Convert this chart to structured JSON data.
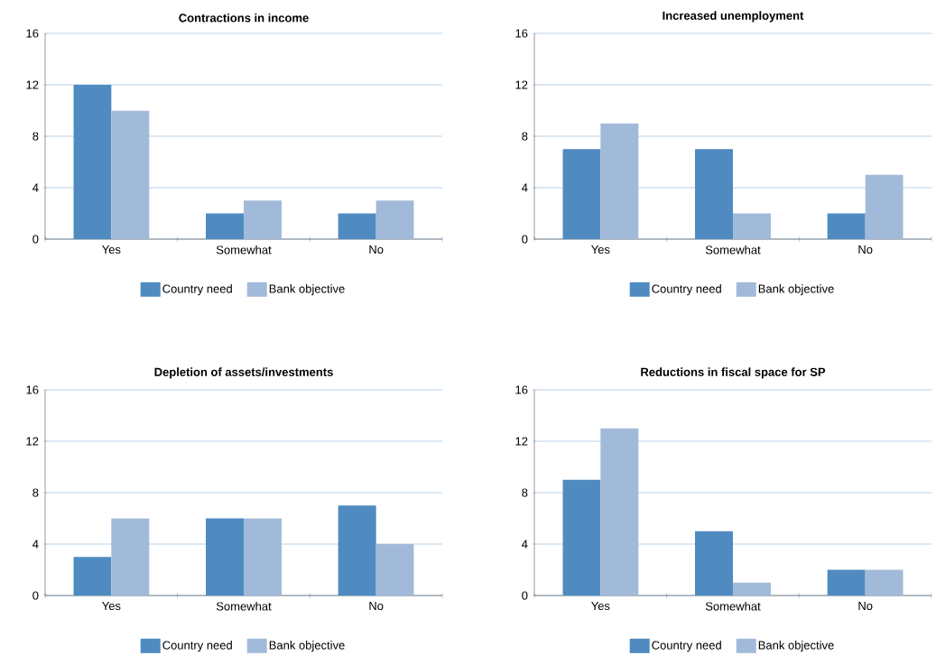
{
  "chart_data": [
    {
      "type": "bar",
      "title": "Contractions in income",
      "categories": [
        "Yes",
        "Somewhat",
        "No"
      ],
      "series": [
        {
          "name": "Country need",
          "color": "#4f8bc0",
          "values": [
            12,
            2,
            2
          ]
        },
        {
          "name": "Bank objective",
          "color": "#a2bad9",
          "values": [
            10,
            3,
            3
          ]
        }
      ],
      "ylim": [
        0,
        16
      ],
      "yticks": [
        0,
        4,
        8,
        12,
        16
      ],
      "grid": "y",
      "legend": "bottom"
    },
    {
      "type": "bar",
      "title": "Increased unemployment",
      "categories": [
        "Yes",
        "Somewhat",
        "No"
      ],
      "series": [
        {
          "name": "Country need",
          "color": "#4f8bc0",
          "values": [
            7,
            7,
            2
          ]
        },
        {
          "name": "Bank objective",
          "color": "#a2bad9",
          "values": [
            9,
            2,
            5
          ]
        }
      ],
      "ylim": [
        0,
        16
      ],
      "yticks": [
        0,
        4,
        8,
        12,
        16
      ],
      "grid": "y",
      "legend": "bottom"
    },
    {
      "type": "bar",
      "title": "Depletion of assets/investments",
      "categories": [
        "Yes",
        "Somewhat",
        "No"
      ],
      "series": [
        {
          "name": "Country need",
          "color": "#4f8bc0",
          "values": [
            3,
            6,
            7
          ]
        },
        {
          "name": "Bank objective",
          "color": "#a2bad9",
          "values": [
            6,
            6,
            4
          ]
        }
      ],
      "ylim": [
        0,
        16
      ],
      "yticks": [
        0,
        4,
        8,
        12,
        16
      ],
      "grid": "y",
      "legend": "bottom"
    },
    {
      "type": "bar",
      "title": "Reductions in fiscal space for SP",
      "categories": [
        "Yes",
        "Somewhat",
        "No"
      ],
      "series": [
        {
          "name": "Country need",
          "color": "#4f8bc0",
          "values": [
            9,
            5,
            2
          ]
        },
        {
          "name": "Bank objective",
          "color": "#a2bad9",
          "values": [
            13,
            1,
            2
          ]
        }
      ],
      "ylim": [
        0,
        16
      ],
      "yticks": [
        0,
        4,
        8,
        12,
        16
      ],
      "grid": "y",
      "legend": "bottom"
    }
  ]
}
